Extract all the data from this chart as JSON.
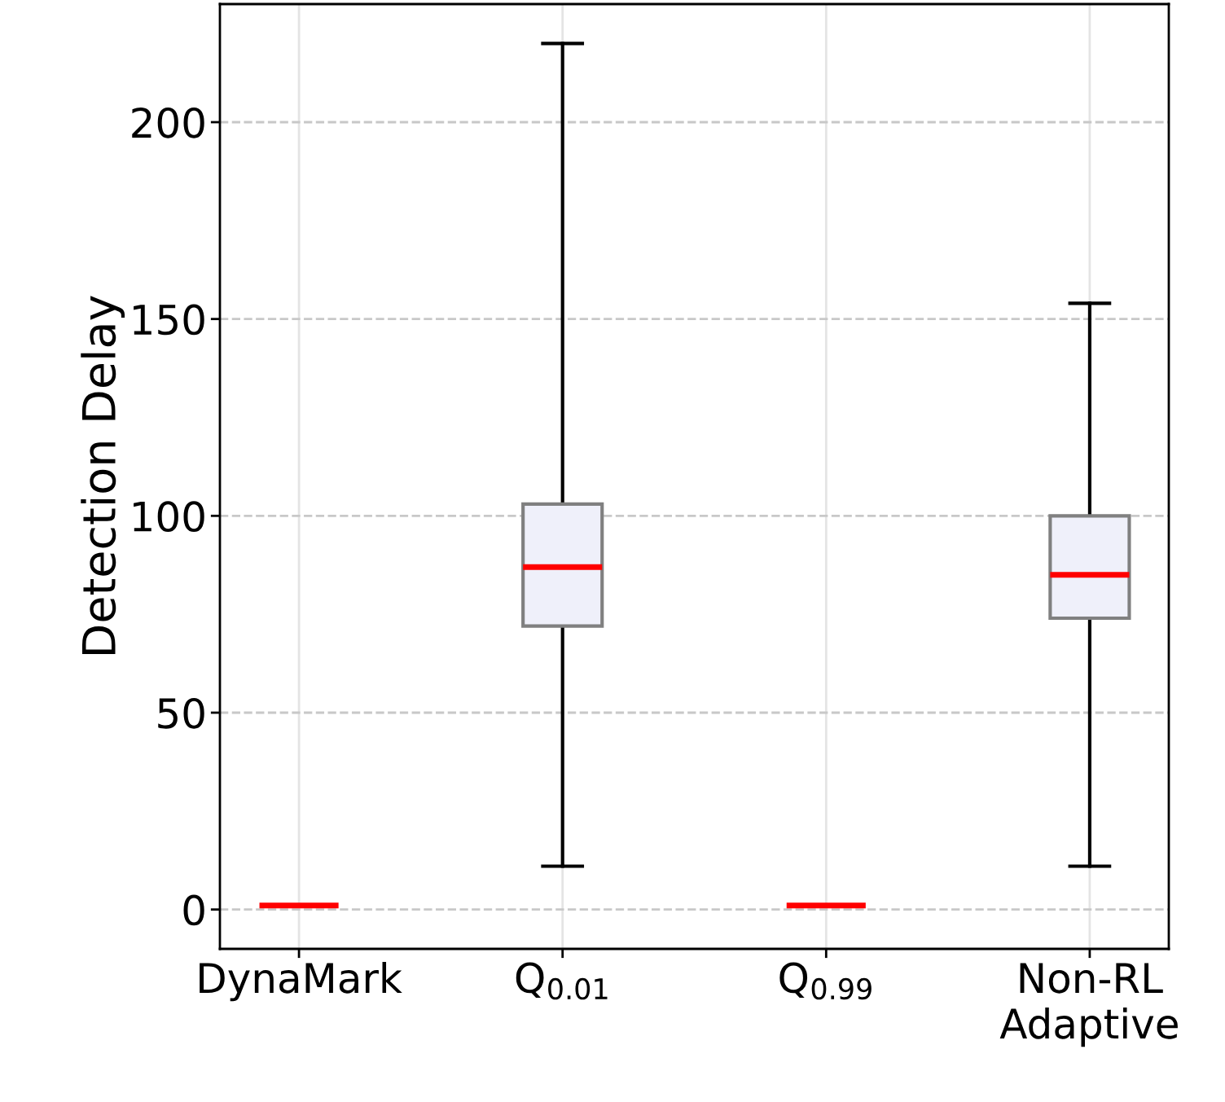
{
  "chart_data": {
    "type": "box",
    "ylabel": "Detection Delay",
    "categories": [
      "DynaMark",
      "Q$_{0.01}$",
      "Q$_{0.99}$",
      "Non-RL\nAdaptive"
    ],
    "series": [
      {
        "color": "#eff0fa",
        "boxes": [
          {
            "low": 1,
            "q1": 1,
            "median": 1,
            "q3": 1,
            "high": 1
          },
          {
            "low": 11,
            "q1": 72,
            "median": 87,
            "q3": 103,
            "high": 220
          },
          {
            "low": 1,
            "q1": 1,
            "median": 1,
            "q3": 1,
            "high": 1
          },
          {
            "low": 11,
            "q1": 74,
            "median": 85,
            "q3": 100,
            "high": 154
          }
        ]
      }
    ],
    "ylim": [
      -10,
      230
    ],
    "yticks": [
      0,
      50,
      100,
      150,
      200
    ],
    "grid": true
  }
}
